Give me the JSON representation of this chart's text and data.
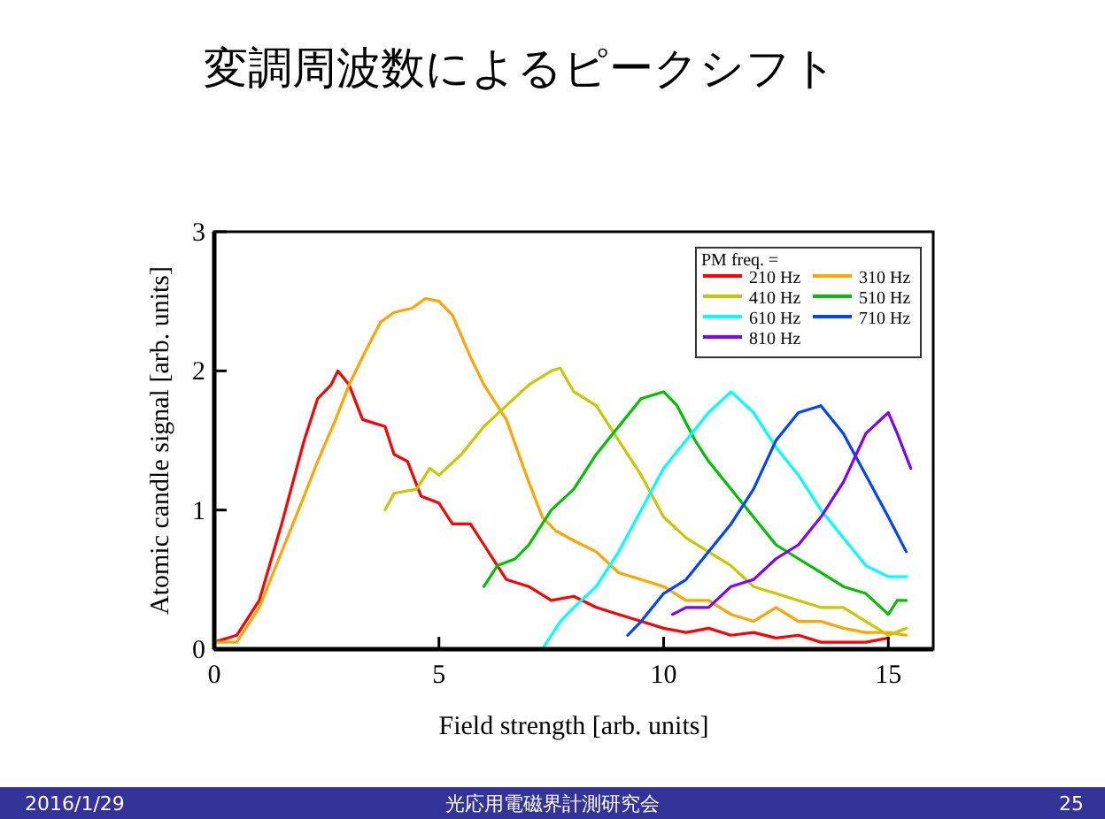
{
  "chart_data": {
    "type": "line",
    "title": "変調周波数によるピークシフト",
    "xlabel": "Field strength [arb. units]",
    "ylabel": "Atomic candle signal [arb. units]",
    "legend_title": "PM freq. =",
    "legend": "top right",
    "grid": false,
    "xlim": [
      0,
      16
    ],
    "ylim": [
      0,
      3
    ],
    "xticks": [
      0,
      5,
      10,
      15
    ],
    "yticks": [
      0,
      1,
      2,
      3
    ],
    "series": [
      {
        "name": "210 Hz",
        "color": "#ff0000",
        "x": [
          0,
          0.5,
          1,
          1.5,
          2,
          2.3,
          2.6,
          2.75,
          3,
          3.3,
          3.8,
          4,
          4.3,
          4.6,
          5,
          5.3,
          5.7,
          6,
          6.5,
          7,
          7.5,
          8,
          8.5,
          9,
          9.5,
          10,
          10.5,
          11,
          11.5,
          12,
          12.5,
          13,
          13.5,
          14,
          14.5,
          15
        ],
        "values": [
          0.05,
          0.1,
          0.35,
          0.9,
          1.5,
          1.8,
          1.9,
          2.0,
          1.9,
          1.65,
          1.6,
          1.4,
          1.35,
          1.1,
          1.05,
          0.9,
          0.9,
          0.75,
          0.5,
          0.45,
          0.35,
          0.38,
          0.3,
          0.25,
          0.2,
          0.15,
          0.12,
          0.15,
          0.1,
          0.12,
          0.08,
          0.1,
          0.05,
          0.05,
          0.05,
          0.08
        ]
      },
      {
        "name": "310 Hz",
        "color": "#ffa500",
        "x": [
          0,
          0.5,
          1,
          1.5,
          2,
          2.3,
          2.7,
          3,
          3.3,
          3.7,
          4,
          4.4,
          4.7,
          5,
          5.3,
          5.7,
          6,
          6.5,
          7,
          7.3,
          7.6,
          8,
          8.5,
          9,
          9.5,
          10,
          10.5,
          11,
          11.5,
          12,
          12.5,
          13,
          13.5,
          14,
          14.5,
          15,
          15.4
        ],
        "values": [
          0.05,
          0.05,
          0.3,
          0.7,
          1.1,
          1.35,
          1.65,
          1.9,
          2.1,
          2.35,
          2.42,
          2.45,
          2.52,
          2.5,
          2.4,
          2.1,
          1.9,
          1.65,
          1.2,
          0.95,
          0.85,
          0.78,
          0.7,
          0.55,
          0.5,
          0.45,
          0.35,
          0.35,
          0.25,
          0.2,
          0.3,
          0.2,
          0.2,
          0.15,
          0.12,
          0.12,
          0.1
        ]
      },
      {
        "name": "410 Hz",
        "color": "#c8c800",
        "x": [
          3.8,
          4,
          4.5,
          4.8,
          5,
          5.5,
          6,
          6.5,
          7,
          7.5,
          7.7,
          8,
          8.5,
          9,
          9.5,
          10,
          10.5,
          11,
          11.5,
          12,
          12.5,
          13,
          13.5,
          14,
          14.5,
          15,
          15.4
        ],
        "values": [
          1.0,
          1.12,
          1.15,
          1.3,
          1.25,
          1.4,
          1.6,
          1.75,
          1.9,
          2.0,
          2.02,
          1.85,
          1.75,
          1.5,
          1.25,
          0.95,
          0.8,
          0.7,
          0.6,
          0.45,
          0.4,
          0.35,
          0.3,
          0.3,
          0.2,
          0.1,
          0.15
        ]
      },
      {
        "name": "510 Hz",
        "color": "#00c000",
        "x": [
          6,
          6.3,
          6.7,
          7,
          7.5,
          8,
          8.5,
          9,
          9.5,
          10,
          10.3,
          10.7,
          11,
          11.5,
          12,
          12.5,
          13,
          13.5,
          14,
          14.5,
          15,
          15.2,
          15.4
        ],
        "values": [
          0.45,
          0.6,
          0.65,
          0.75,
          1.0,
          1.15,
          1.4,
          1.6,
          1.8,
          1.85,
          1.75,
          1.5,
          1.35,
          1.15,
          0.95,
          0.75,
          0.65,
          0.55,
          0.45,
          0.4,
          0.25,
          0.35,
          0.35
        ]
      },
      {
        "name": "610 Hz",
        "color": "#00ffff",
        "x": [
          7.3,
          7.7,
          8,
          8.5,
          9,
          9.5,
          10,
          10.5,
          11,
          11.5,
          12,
          12.5,
          13,
          13.5,
          14,
          14.5,
          15,
          15.4
        ],
        "values": [
          0.0,
          0.2,
          0.3,
          0.45,
          0.7,
          1.0,
          1.3,
          1.5,
          1.7,
          1.85,
          1.7,
          1.45,
          1.25,
          1.0,
          0.8,
          0.6,
          0.52,
          0.52
        ]
      },
      {
        "name": "710 Hz",
        "color": "#0044ff",
        "x": [
          9.2,
          9.5,
          10,
          10.5,
          11,
          11.5,
          12,
          12.5,
          13,
          13.5,
          14,
          14.5,
          15,
          15.4
        ],
        "values": [
          0.1,
          0.2,
          0.4,
          0.5,
          0.7,
          0.9,
          1.15,
          1.5,
          1.7,
          1.75,
          1.55,
          1.25,
          0.95,
          0.7
        ]
      },
      {
        "name": "810 Hz",
        "color": "#8000ff",
        "x": [
          10.2,
          10.5,
          11,
          11.5,
          12,
          12.5,
          13,
          13.5,
          14,
          14.5,
          15,
          15.2,
          15.5
        ],
        "values": [
          0.25,
          0.3,
          0.3,
          0.45,
          0.5,
          0.65,
          0.75,
          0.95,
          1.2,
          1.55,
          1.7,
          1.55,
          1.3
        ]
      }
    ],
    "annotations": [
      "2016/1/29",
      "光応用電磁界計測研究会",
      "25"
    ]
  }
}
